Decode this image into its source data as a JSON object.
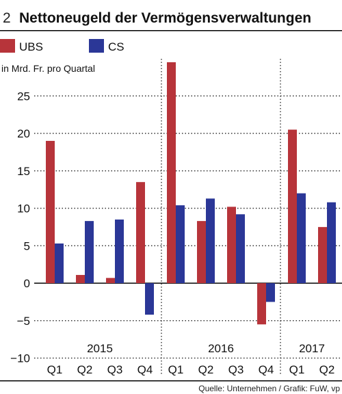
{
  "header": {
    "number": "2",
    "title": "Nettoneugeld der Vermögensverwaltungen"
  },
  "unit_label": "in Mrd. Fr. pro Quartal",
  "source": "Quelle: Unternehmen / Grafik: FuW, vp",
  "colors": {
    "ubs": "#b7343a",
    "cs": "#2b3797",
    "grid": "#333333",
    "axis": "#000000"
  },
  "chart_data": {
    "type": "bar",
    "categories": [
      "Q1",
      "Q2",
      "Q3",
      "Q4",
      "Q1",
      "Q2",
      "Q3",
      "Q4",
      "Q1",
      "Q2"
    ],
    "years": [
      "2015",
      "2016",
      "2017"
    ],
    "series": [
      {
        "name": "UBS",
        "values": [
          19,
          1.1,
          0.7,
          13.5,
          29.5,
          8.3,
          10.2,
          -5.5,
          20.5,
          7.5
        ]
      },
      {
        "name": "CS",
        "values": [
          5.3,
          8.3,
          8.5,
          -4.2,
          10.4,
          11.3,
          9.2,
          -2.5,
          12,
          10.8
        ]
      }
    ],
    "ylim": [
      -10,
      30
    ],
    "yticks": [
      "25",
      "20",
      "15",
      "10",
      "5",
      "0",
      "−5",
      "−10"
    ],
    "ytick_values": [
      25,
      20,
      15,
      10,
      5,
      0,
      -5,
      -10
    ],
    "grid": true,
    "legend": "top-left"
  }
}
